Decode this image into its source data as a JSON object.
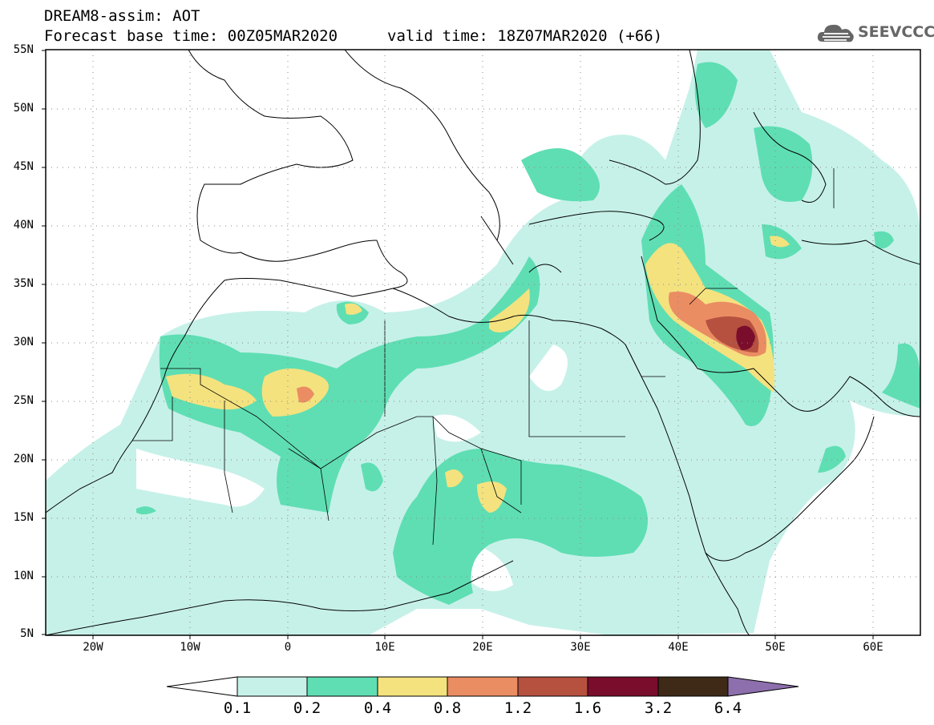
{
  "header": {
    "line1": "DREAM8-assim: AOT",
    "line2": "Forecast base time: 00Z05MAR2020",
    "valid": "valid time: 18Z07MAR2020 (+66)",
    "logo": "SEEVCCC"
  },
  "map": {
    "lat_labels": [
      "55N",
      "50N",
      "45N",
      "40N",
      "35N",
      "30N",
      "25N",
      "20N",
      "15N",
      "10N",
      "5N"
    ],
    "lon_labels": [
      "20W",
      "10W",
      "0",
      "10E",
      "20E",
      "30E",
      "40E",
      "50E",
      "60E"
    ]
  },
  "colorbar": {
    "labels": [
      "0.1",
      "0.2",
      "0.4",
      "0.8",
      "1.2",
      "1.6",
      "3.2",
      "6.4"
    ],
    "colors": [
      "#ffffff",
      "#c6f1e8",
      "#5fdeb3",
      "#f4e27f",
      "#ea8d63",
      "#b6503f",
      "#7b0d2c",
      "#3e2a17",
      "#8d6fad"
    ]
  }
}
